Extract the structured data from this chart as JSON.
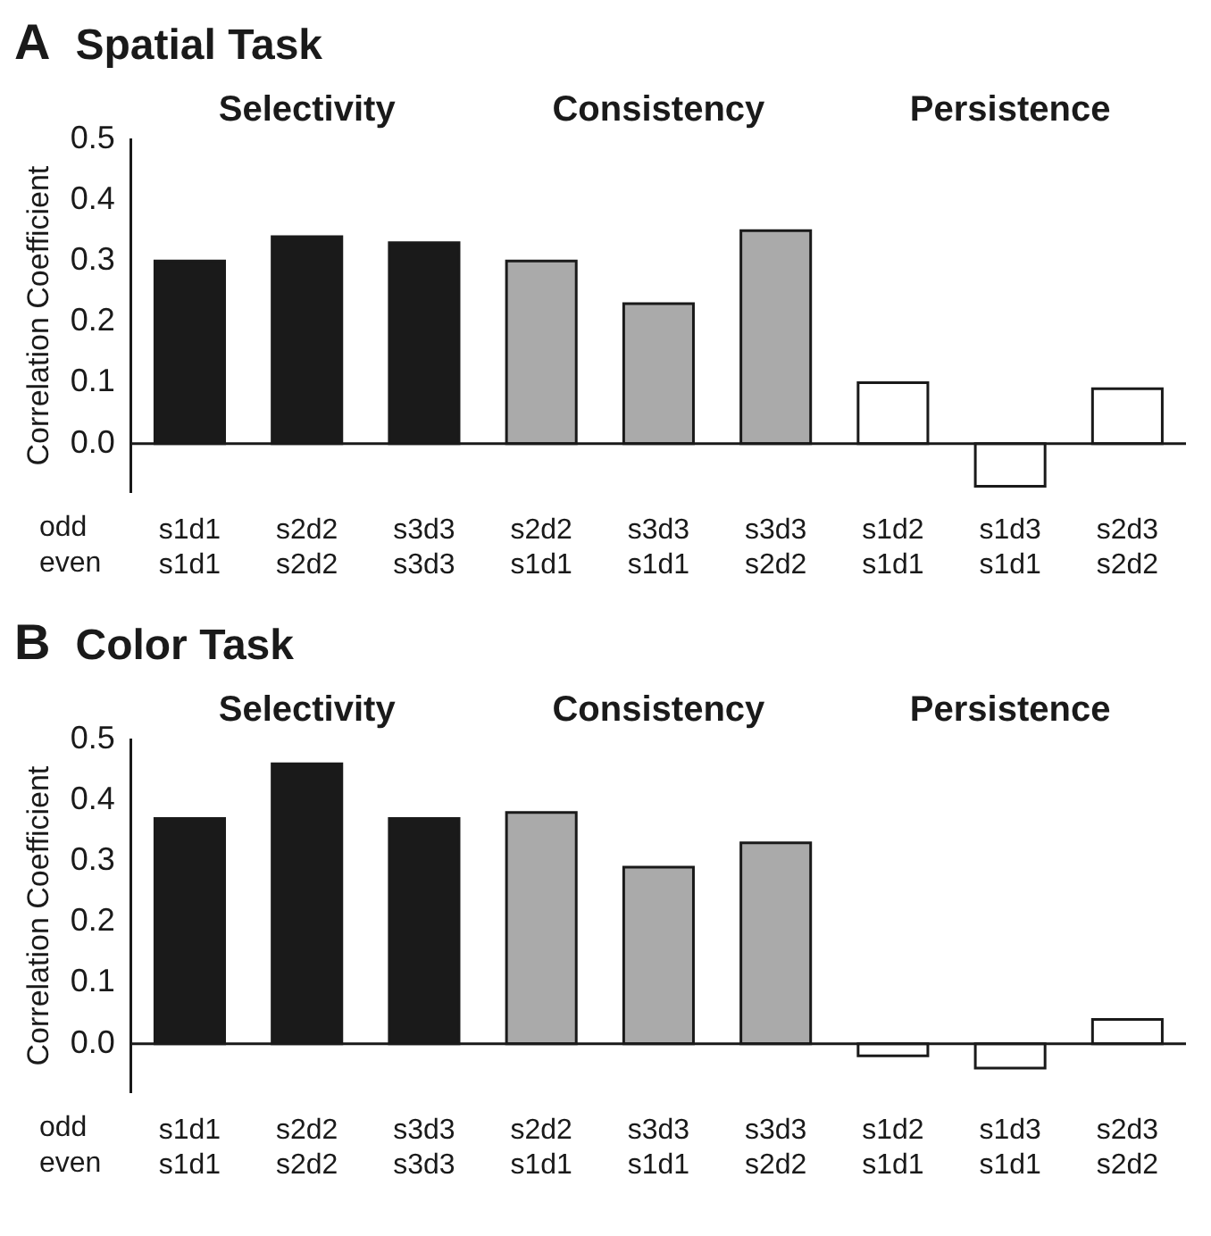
{
  "chart_data": [
    {
      "type": "bar",
      "title": "Spatial Task",
      "ylabel": "Correlation Coefficient",
      "categories": [
        "s1d1\ns1d1",
        "s2d2\ns2d2",
        "s3d3\ns3d3",
        "s2d2\ns1d1",
        "s3d3\ns1d1",
        "s3d3\ns2d2",
        "s1d2\ns1d1",
        "s1d3\ns1d1",
        "s2d3\ns2d2"
      ],
      "values": [
        0.3,
        0.34,
        0.33,
        0.3,
        0.23,
        0.35,
        0.1,
        -0.07,
        0.09
      ],
      "colors": [
        "#1a1a1a",
        "#1a1a1a",
        "#1a1a1a",
        "#aaaaaa",
        "#aaaaaa",
        "#aaaaaa",
        "#ffffff",
        "#ffffff",
        "#ffffff"
      ],
      "ylim": [
        -0.08,
        0.5
      ],
      "yticks": [
        {
          "value": 0,
          "label": "0.0"
        },
        0.1,
        0.2,
        0.3,
        0.4,
        0.5
      ],
      "grid": false,
      "legend": false,
      "annotations": [
        "A",
        "odd\neven",
        "Selectivity",
        "Consistency",
        "Persistence"
      ]
    },
    {
      "type": "bar",
      "title": "Color Task",
      "ylabel": "Correlation Coefficient",
      "categories": [
        "s1d1\ns1d1",
        "s2d2\ns2d2",
        "s3d3\ns3d3",
        "s2d2\ns1d1",
        "s3d3\ns1d1",
        "s3d3\ns2d2",
        "s1d2\ns1d1",
        "s1d3\ns1d1",
        "s2d3\ns2d2"
      ],
      "values": [
        0.37,
        0.46,
        0.37,
        0.38,
        0.29,
        0.33,
        -0.02,
        -0.04,
        0.04
      ],
      "colors": [
        "#1a1a1a",
        "#1a1a1a",
        "#1a1a1a",
        "#aaaaaa",
        "#aaaaaa",
        "#aaaaaa",
        "#ffffff",
        "#ffffff",
        "#ffffff"
      ],
      "ylim": [
        -0.08,
        0.5
      ],
      "yticks": [
        {
          "value": 0,
          "label": "0.0"
        },
        0.1,
        0.2,
        0.3,
        0.4,
        0.5
      ],
      "grid": false,
      "legend": false,
      "annotations": [
        "B",
        "odd\neven",
        "Selectivity",
        "Consistency",
        "Persistence"
      ]
    }
  ]
}
